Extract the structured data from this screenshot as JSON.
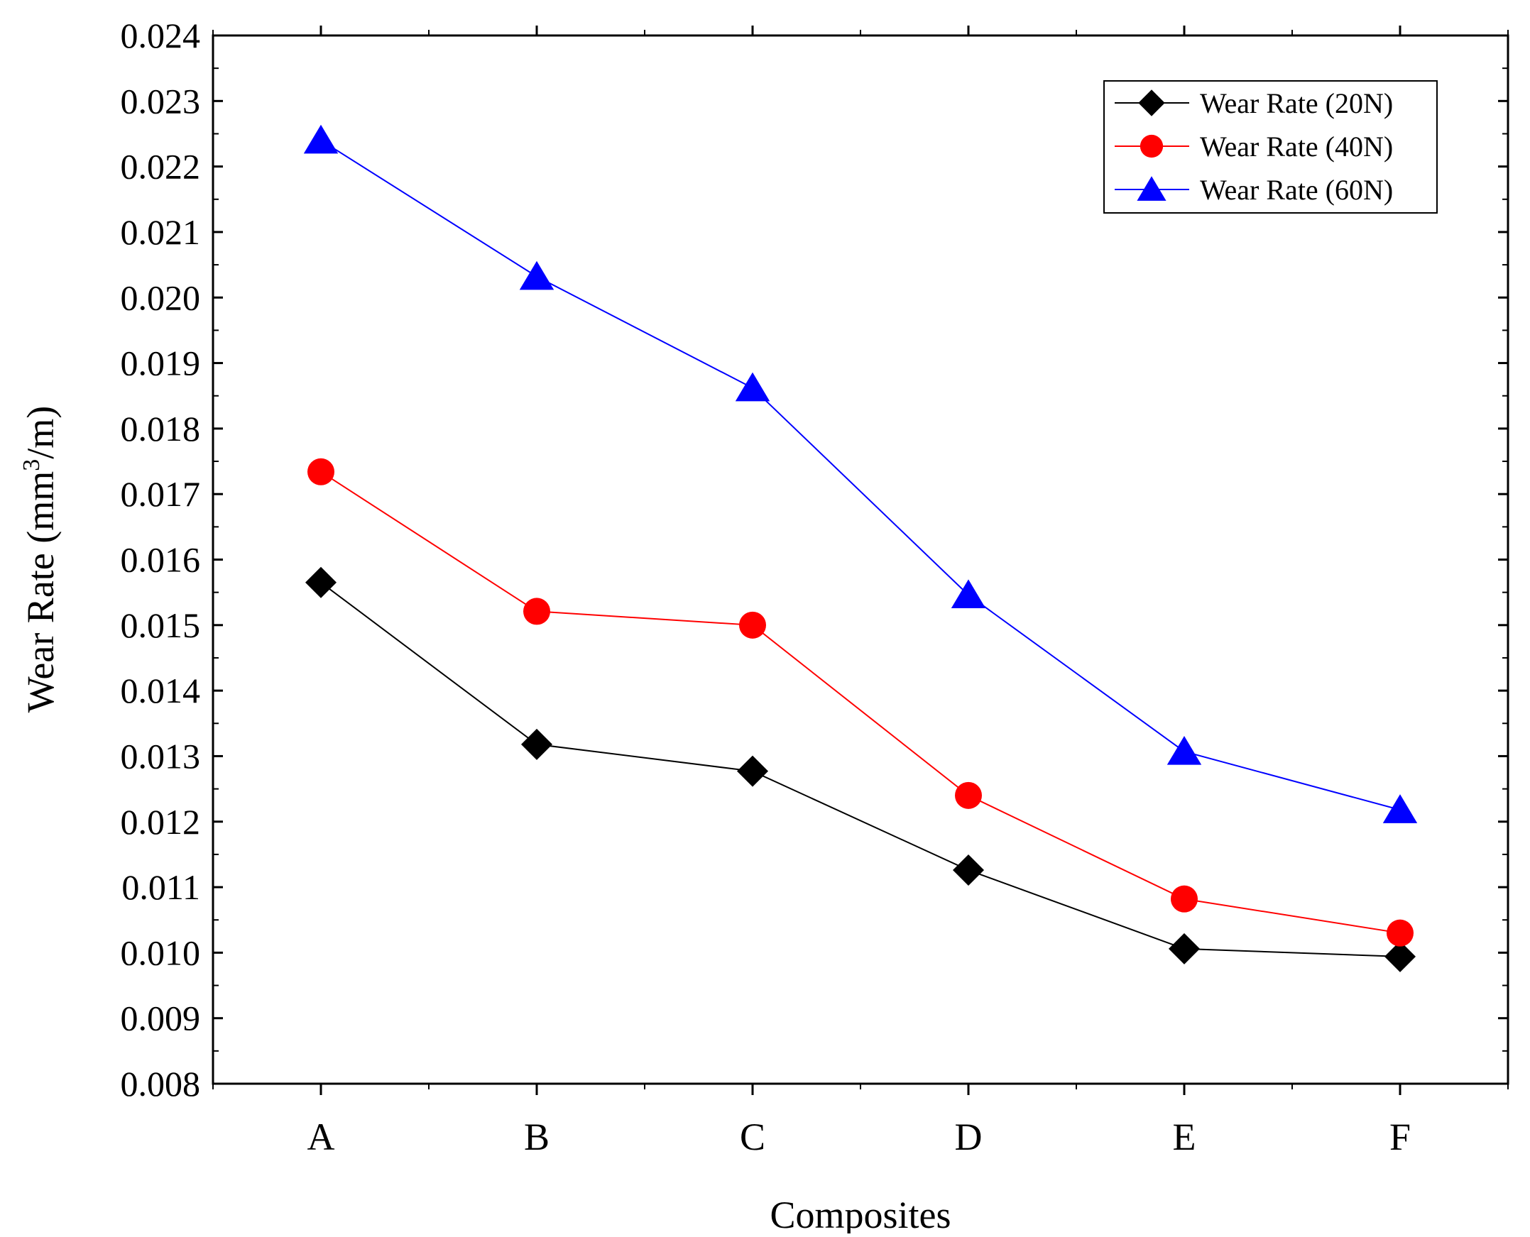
{
  "chart_data": {
    "type": "line",
    "title": "",
    "xlabel": "Composites",
    "ylabel": "Wear Rate (mm³/m)",
    "ylabel_parts": {
      "pre": "Wear Rate (mm",
      "sup": "3",
      "post": "/m)"
    },
    "categories": [
      "A",
      "B",
      "C",
      "D",
      "E",
      "F"
    ],
    "ylim": [
      0.008,
      0.024
    ],
    "yticks": [
      "0.008",
      "0.009",
      "0.010",
      "0.011",
      "0.012",
      "0.013",
      "0.014",
      "0.015",
      "0.016",
      "0.017",
      "0.018",
      "0.019",
      "0.020",
      "0.021",
      "0.022",
      "0.023",
      "0.024"
    ],
    "grid": false,
    "legend_position": "top-right",
    "series": [
      {
        "name": "Wear Rate (20N)",
        "color": "#000000",
        "marker": "diamond",
        "values": [
          0.01565,
          0.01318,
          0.01277,
          0.01126,
          0.01006,
          0.00994
        ]
      },
      {
        "name": "Wear Rate (40N)",
        "color": "#ff0000",
        "marker": "circle",
        "values": [
          0.01734,
          0.01521,
          0.015,
          0.0124,
          0.01082,
          0.0103
        ]
      },
      {
        "name": "Wear Rate (60N)",
        "color": "#0000ff",
        "marker": "triangle",
        "values": [
          0.0224,
          0.02032,
          0.01862,
          0.01546,
          0.01307,
          0.01218
        ]
      }
    ]
  }
}
